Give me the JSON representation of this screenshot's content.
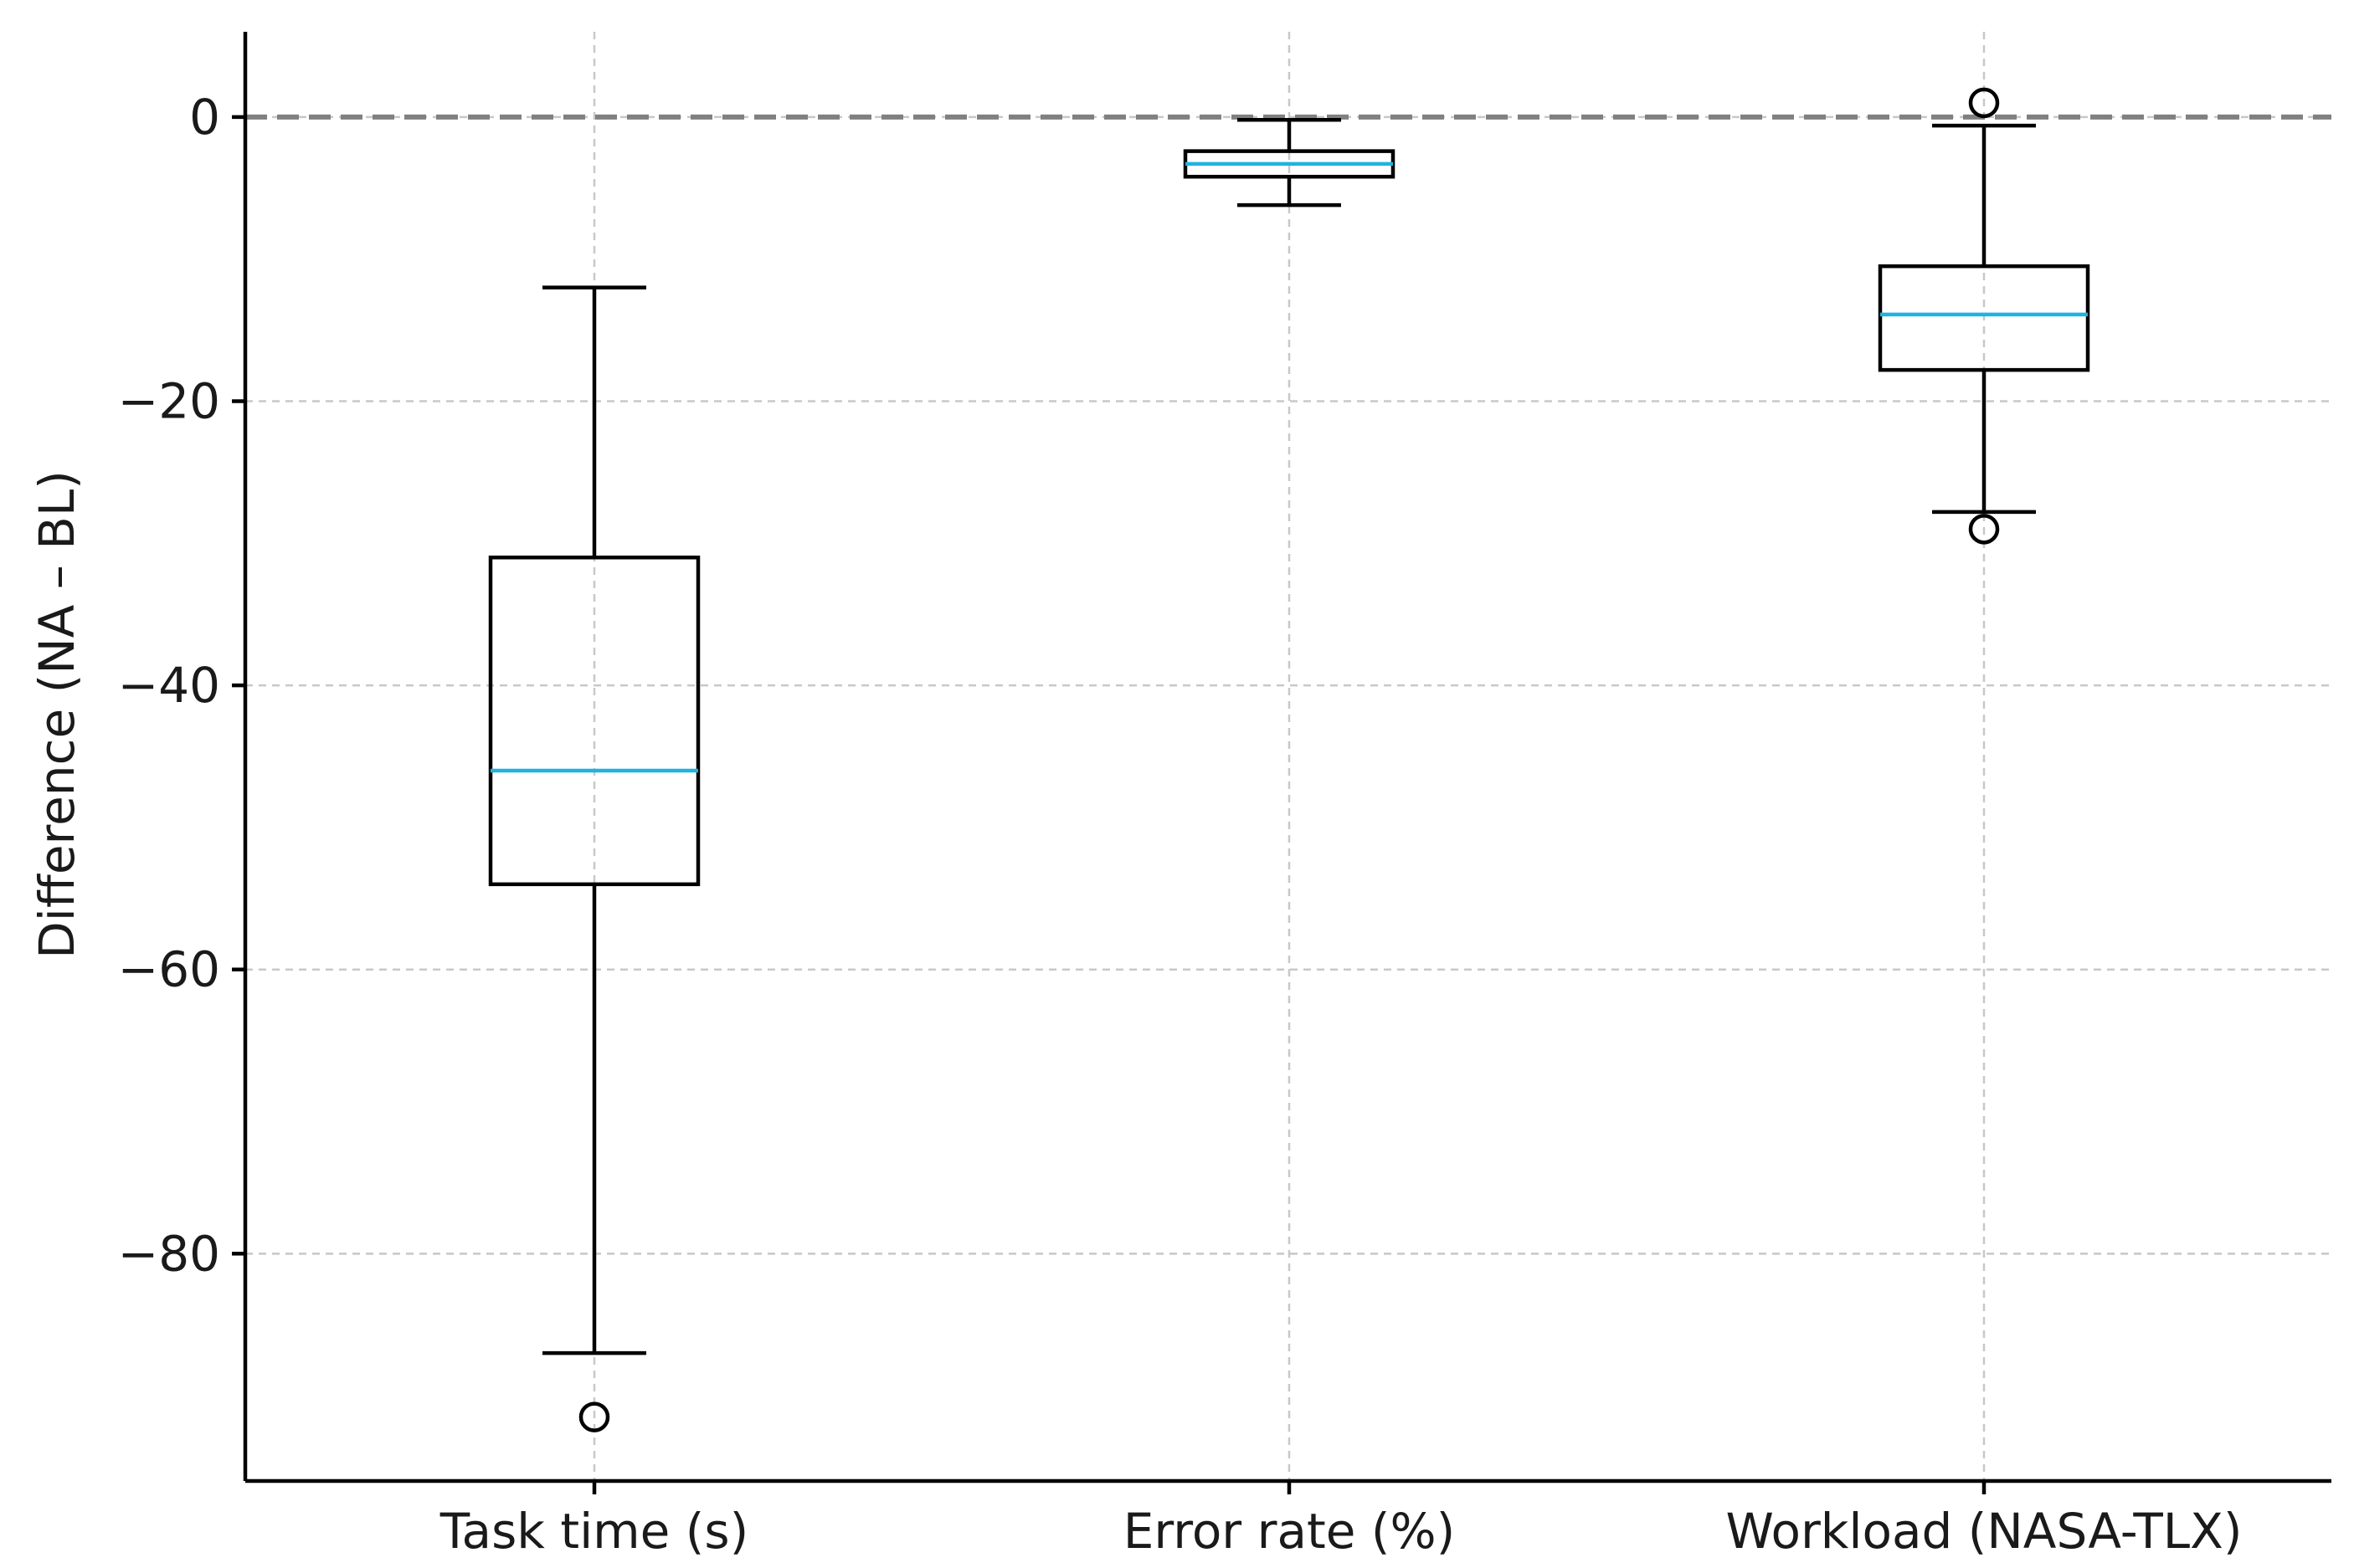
{
  "chart_data": {
    "type": "box",
    "title": "",
    "xlabel": "",
    "ylabel": "Difference (NA – BL)",
    "ylim": [
      -96,
      6
    ],
    "yticks": [
      0,
      -20,
      -40,
      -60,
      -80
    ],
    "ytick_labels": [
      "0",
      "−20",
      "−40",
      "−60",
      "−80"
    ],
    "grid": true,
    "reference_line": {
      "y": 0,
      "style": "dashed",
      "color": "#808080"
    },
    "colors": {
      "box": "#000000",
      "median": "#1fb3e0",
      "grid": "#c8c8c8",
      "reference": "#808080"
    },
    "categories": [
      "Task time (s)",
      "Error rate (%)",
      "Workload (NASA-TLX)"
    ],
    "boxes": [
      {
        "category": "Task time (s)",
        "whisker_low": -87,
        "q1": -54,
        "median": -46,
        "q3": -31,
        "whisker_high": -12,
        "outliers": [
          -91.5
        ]
      },
      {
        "category": "Error rate (%)",
        "whisker_low": -6.2,
        "q1": -4.2,
        "median": -3.3,
        "q3": -2.4,
        "whisker_high": -0.2,
        "outliers": []
      },
      {
        "category": "Workload (NASA-TLX)",
        "whisker_low": -27.8,
        "q1": -17.8,
        "median": -13.9,
        "q3": -10.5,
        "whisker_high": -0.6,
        "outliers": [
          1.0,
          -29.0
        ]
      }
    ]
  }
}
